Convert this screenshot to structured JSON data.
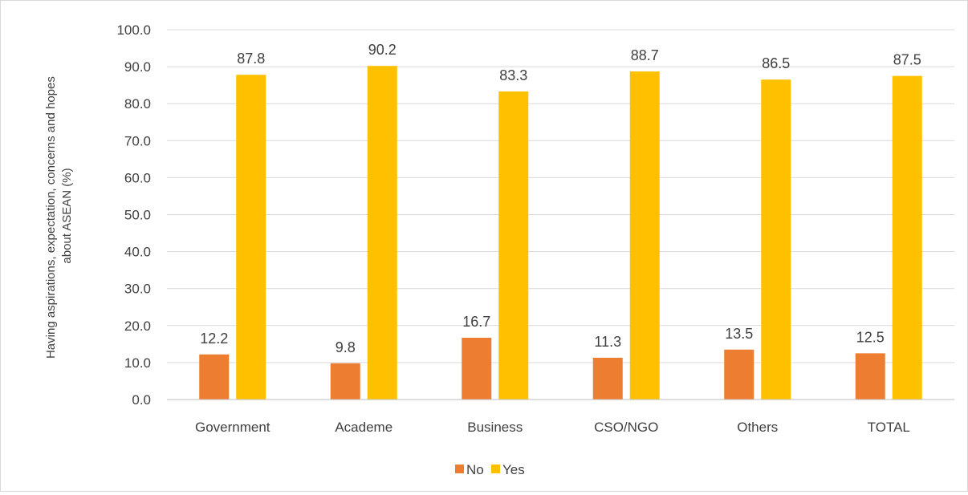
{
  "chart_data": {
    "type": "bar",
    "categories": [
      "Government",
      "Academe",
      "Business",
      "CSO/NGO",
      "Others",
      "TOTAL"
    ],
    "series": [
      {
        "name": "No",
        "values": [
          12.2,
          9.8,
          16.7,
          11.3,
          13.5,
          12.5
        ],
        "color": "#ED7D31"
      },
      {
        "name": "Yes",
        "values": [
          87.8,
          90.2,
          83.3,
          88.7,
          86.5,
          87.5
        ],
        "color": "#FFC000"
      }
    ],
    "title": "",
    "xlabel": "",
    "ylabel": {
      "line1": "Having aspirations, expectation, concerns and hopes",
      "line2": "about ASEAN (%)"
    },
    "ylim": [
      0,
      100
    ],
    "yticks": [
      "0.0",
      "10.0",
      "20.0",
      "30.0",
      "40.0",
      "50.0",
      "60.0",
      "70.0",
      "80.0",
      "90.0",
      "100.0"
    ],
    "grid": true,
    "legend_position": "bottom"
  }
}
